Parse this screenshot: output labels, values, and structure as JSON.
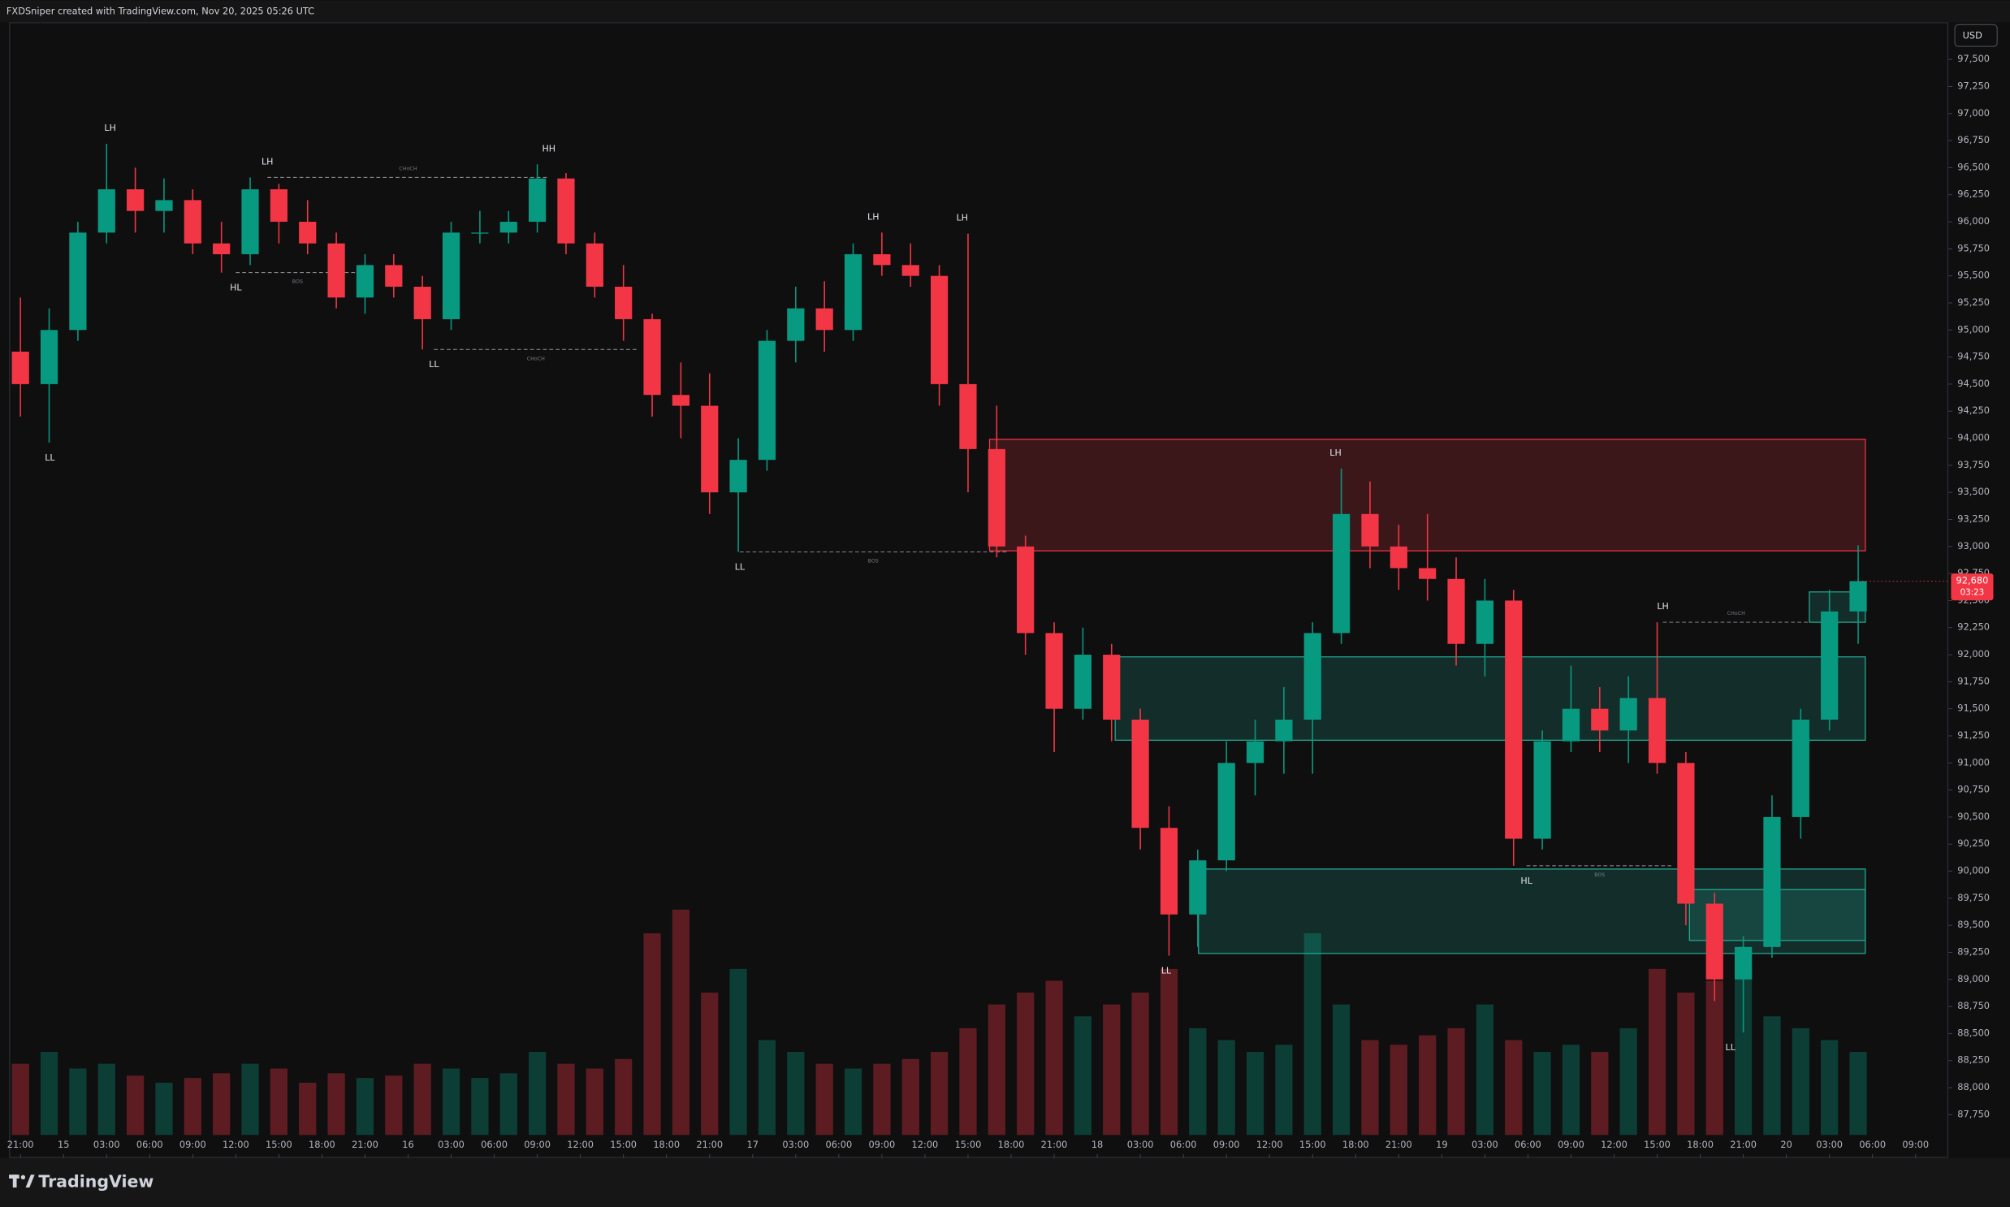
{
  "chart_data": {
    "type": "candlestick",
    "header": "FXDSniper created with TradingView.com, Nov 20, 2025 05:26 UTC",
    "currency": "USD",
    "brand": "TradingView",
    "up_color": "#089981",
    "down_color": "#f23645",
    "x": [
      0,
      2,
      4,
      6,
      8,
      10,
      12,
      14,
      16,
      18,
      20,
      22,
      24,
      26,
      28,
      30,
      32,
      34,
      36,
      38,
      40,
      42,
      44,
      46,
      48,
      50,
      52,
      54,
      56,
      58,
      60,
      62,
      64,
      66,
      68,
      70,
      72,
      74,
      76,
      78,
      80,
      82,
      84,
      86,
      88,
      90,
      92,
      94,
      96,
      98,
      100,
      102,
      104,
      106,
      108,
      110,
      112,
      114,
      116,
      118,
      120,
      122,
      124,
      126,
      128
    ],
    "open": [
      94800,
      94500,
      95000,
      95900,
      96300,
      96100,
      96200,
      95800,
      95700,
      96300,
      96000,
      95800,
      95300,
      95600,
      95400,
      95100,
      95900,
      95900,
      96000,
      96400,
      95800,
      95400,
      95100,
      94400,
      94300,
      93500,
      93800,
      94900,
      95200,
      95000,
      95700,
      95600,
      95500,
      94500,
      93900,
      93000,
      92200,
      91500,
      92000,
      91400,
      90400,
      89600,
      90100,
      91000,
      91200,
      91400,
      92200,
      93300,
      93000,
      92800,
      92700,
      92100,
      92500,
      90300,
      91200,
      91500,
      91300,
      91600,
      91000,
      89700,
      89000,
      89300,
      90500,
      91400,
      92400
    ],
    "high": [
      95300,
      95200,
      96000,
      96720,
      96500,
      96400,
      96300,
      96000,
      96410,
      96350,
      96200,
      95900,
      95700,
      95700,
      95500,
      96000,
      96100,
      96100,
      96530,
      96450,
      95900,
      95600,
      95150,
      94700,
      94600,
      94000,
      95000,
      95400,
      95450,
      95800,
      95900,
      95800,
      95600,
      95890,
      94300,
      93100,
      92300,
      92250,
      92100,
      91500,
      90600,
      90200,
      91200,
      91400,
      91700,
      92300,
      93720,
      93600,
      93200,
      93300,
      92900,
      92700,
      92600,
      91300,
      91900,
      91700,
      91800,
      92300,
      91100,
      89800,
      89400,
      90700,
      91500,
      92600,
      93010
    ],
    "low": [
      94200,
      93960,
      94900,
      95800,
      95900,
      95900,
      95700,
      95530,
      95600,
      95800,
      95700,
      95200,
      95150,
      95300,
      94820,
      95000,
      95800,
      95800,
      95900,
      95700,
      95300,
      94900,
      94200,
      94000,
      93300,
      92950,
      93700,
      94700,
      94800,
      94900,
      95500,
      95400,
      94300,
      93500,
      92900,
      92000,
      91100,
      91400,
      91200,
      90200,
      89220,
      89300,
      90000,
      90700,
      90900,
      90900,
      92100,
      92800,
      92600,
      92500,
      91900,
      91800,
      90050,
      90200,
      91100,
      91100,
      91000,
      90900,
      89500,
      88800,
      88510,
      89200,
      90300,
      91300,
      92100
    ],
    "close": [
      94500,
      95000,
      95900,
      96300,
      96100,
      96200,
      95800,
      95700,
      96300,
      96000,
      95800,
      95300,
      95600,
      95400,
      95100,
      95900,
      95900,
      96000,
      96400,
      95800,
      95400,
      95100,
      94400,
      94300,
      93500,
      93800,
      94900,
      95200,
      95000,
      95700,
      95600,
      95500,
      94500,
      93900,
      93000,
      92200,
      91500,
      92000,
      91400,
      90400,
      89600,
      90100,
      91000,
      91200,
      91400,
      92200,
      93300,
      93000,
      92800,
      92700,
      92100,
      92500,
      90300,
      91200,
      91500,
      91300,
      91600,
      91000,
      89700,
      89000,
      89300,
      90500,
      91400,
      92400,
      92680
    ],
    "volume": [
      30,
      35,
      28,
      30,
      25,
      22,
      24,
      26,
      30,
      28,
      22,
      26,
      24,
      25,
      30,
      28,
      24,
      26,
      35,
      30,
      28,
      32,
      85,
      95,
      60,
      70,
      40,
      35,
      30,
      28,
      30,
      32,
      35,
      45,
      55,
      60,
      65,
      50,
      55,
      60,
      70,
      45,
      40,
      35,
      38,
      85,
      55,
      40,
      38,
      42,
      45,
      55,
      40,
      35,
      38,
      35,
      45,
      70,
      60,
      65,
      70,
      50,
      45,
      40,
      35
    ],
    "vlim": [
      0,
      100
    ],
    "xlim": [
      -0.71,
      134.29
    ],
    "xticks": [
      {
        "value": 0,
        "label": "21:00"
      },
      {
        "value": 3,
        "label": "15"
      },
      {
        "value": 6,
        "label": "03:00"
      },
      {
        "value": 9,
        "label": "06:00"
      },
      {
        "value": 12,
        "label": "09:00"
      },
      {
        "value": 15,
        "label": "12:00"
      },
      {
        "value": 18,
        "label": "15:00"
      },
      {
        "value": 21,
        "label": "18:00"
      },
      {
        "value": 24,
        "label": "21:00"
      },
      {
        "value": 27,
        "label": "16"
      },
      {
        "value": 30,
        "label": "03:00"
      },
      {
        "value": 33,
        "label": "06:00"
      },
      {
        "value": 36,
        "label": "09:00"
      },
      {
        "value": 39,
        "label": "12:00"
      },
      {
        "value": 42,
        "label": "15:00"
      },
      {
        "value": 45,
        "label": "18:00"
      },
      {
        "value": 48,
        "label": "21:00"
      },
      {
        "value": 51,
        "label": "17"
      },
      {
        "value": 54,
        "label": "03:00"
      },
      {
        "value": 57,
        "label": "06:00"
      },
      {
        "value": 60,
        "label": "09:00"
      },
      {
        "value": 63,
        "label": "12:00"
      },
      {
        "value": 66,
        "label": "15:00"
      },
      {
        "value": 69,
        "label": "18:00"
      },
      {
        "value": 72,
        "label": "21:00"
      },
      {
        "value": 75,
        "label": "18"
      },
      {
        "value": 78,
        "label": "03:00"
      },
      {
        "value": 81,
        "label": "06:00"
      },
      {
        "value": 84,
        "label": "09:00"
      },
      {
        "value": 87,
        "label": "12:00"
      },
      {
        "value": 90,
        "label": "15:00"
      },
      {
        "value": 93,
        "label": "18:00"
      },
      {
        "value": 96,
        "label": "21:00"
      },
      {
        "value": 99,
        "label": "19"
      },
      {
        "value": 102,
        "label": "03:00"
      },
      {
        "value": 105,
        "label": "06:00"
      },
      {
        "value": 108,
        "label": "09:00"
      },
      {
        "value": 111,
        "label": "12:00"
      },
      {
        "value": 114,
        "label": "15:00"
      },
      {
        "value": 117,
        "label": "18:00"
      },
      {
        "value": 120,
        "label": "21:00"
      },
      {
        "value": 123,
        "label": "20"
      },
      {
        "value": 126,
        "label": "03:00"
      },
      {
        "value": 129,
        "label": "06:00"
      },
      {
        "value": 132,
        "label": "09:00"
      }
    ],
    "ylim": [
      87350,
      97845
    ],
    "yticks": [
      {
        "value": 97500,
        "label": "97,500"
      },
      {
        "value": 97250,
        "label": "97,250"
      },
      {
        "value": 97000,
        "label": "97,000"
      },
      {
        "value": 96750,
        "label": "96,750"
      },
      {
        "value": 96500,
        "label": "96,500"
      },
      {
        "value": 96250,
        "label": "96,250"
      },
      {
        "value": 96000,
        "label": "96,000"
      },
      {
        "value": 95750,
        "label": "95,750"
      },
      {
        "value": 95500,
        "label": "95,500"
      },
      {
        "value": 95250,
        "label": "95,250"
      },
      {
        "value": 95000,
        "label": "95,000"
      },
      {
        "value": 94750,
        "label": "94,750"
      },
      {
        "value": 94500,
        "label": "94,500"
      },
      {
        "value": 94250,
        "label": "94,250"
      },
      {
        "value": 94000,
        "label": "94,000"
      },
      {
        "value": 93750,
        "label": "93,750"
      },
      {
        "value": 93500,
        "label": "93,500"
      },
      {
        "value": 93250,
        "label": "93,250"
      },
      {
        "value": 93000,
        "label": "93,000"
      },
      {
        "value": 92750,
        "label": "92,750"
      },
      {
        "value": 92500,
        "label": "92,500"
      },
      {
        "value": 92250,
        "label": "92,250"
      },
      {
        "value": 92000,
        "label": "92,000"
      },
      {
        "value": 91750,
        "label": "91,750"
      },
      {
        "value": 91500,
        "label": "91,500"
      },
      {
        "value": 91250,
        "label": "91,250"
      },
      {
        "value": 91000,
        "label": "91,000"
      },
      {
        "value": 90750,
        "label": "90,750"
      },
      {
        "value": 90500,
        "label": "90,500"
      },
      {
        "value": 90250,
        "label": "90,250"
      },
      {
        "value": 90000,
        "label": "90,000"
      },
      {
        "value": 89750,
        "label": "89,750"
      },
      {
        "value": 89500,
        "label": "89,500"
      },
      {
        "value": 89250,
        "label": "89,250"
      },
      {
        "value": 89000,
        "label": "89,000"
      },
      {
        "value": 88750,
        "label": "88,750"
      },
      {
        "value": 88500,
        "label": "88,500"
      },
      {
        "value": 88250,
        "label": "88,250"
      },
      {
        "value": 88000,
        "label": "88,000"
      },
      {
        "value": 87750,
        "label": "87,750"
      }
    ],
    "zones": [
      {
        "x": [
          67.5,
          128.5
        ],
        "price": [
          93990,
          92960
        ],
        "color": "#f23645"
      },
      {
        "x": [
          76.25,
          128.5
        ],
        "price": [
          91980,
          91210
        ],
        "color": "#22ab94"
      },
      {
        "x": [
          82.05,
          128.5
        ],
        "price": [
          90020,
          89240
        ],
        "color": "#22ab94"
      },
      {
        "x": [
          116.25,
          128.5
        ],
        "price": [
          89830,
          89360
        ],
        "color": "#22ab94"
      },
      {
        "x": [
          124.6,
          128.5
        ],
        "price": [
          92580,
          92300
        ],
        "color": "#22ab94"
      }
    ],
    "structure": [
      {
        "label": "LL",
        "x": 2.05,
        "price": 93960,
        "position": "below"
      },
      {
        "label": "LH",
        "x": 6.25,
        "price": 96720,
        "position": "above"
      },
      {
        "label": "HL",
        "x": 15,
        "price": 95530,
        "position": "below"
      },
      {
        "label": "LH",
        "x": 17.2,
        "price": 96410,
        "position": "above"
      },
      {
        "label": "LL",
        "x": 28.8,
        "price": 94820,
        "position": "below"
      },
      {
        "label": "HH",
        "x": 36.8,
        "price": 96530,
        "position": "above"
      },
      {
        "label": "LL",
        "x": 50.1,
        "price": 92950,
        "position": "below"
      },
      {
        "label": "LH",
        "x": 59.4,
        "price": 95900,
        "position": "above"
      },
      {
        "label": "LH",
        "x": 65.6,
        "price": 95890,
        "position": "above"
      },
      {
        "label": "LL",
        "x": 79.8,
        "price": 89220,
        "position": "below"
      },
      {
        "label": "LH",
        "x": 91.6,
        "price": 93720,
        "position": "above"
      },
      {
        "label": "HL",
        "x": 104.9,
        "price": 90050,
        "position": "below"
      },
      {
        "label": "LH",
        "x": 114.4,
        "price": 92300,
        "position": "above"
      },
      {
        "label": "LL",
        "x": 119.1,
        "price": 88510,
        "position": "below"
      }
    ],
    "breaks": [
      {
        "label": "CHoCH",
        "x": [
          17.2,
          36.8
        ],
        "price": 96410,
        "position": "above"
      },
      {
        "label": "BOS",
        "x": [
          15,
          23.6
        ],
        "price": 95530,
        "position": "below"
      },
      {
        "label": "CHoCH",
        "x": [
          28.8,
          43
        ],
        "price": 94820,
        "position": "below"
      },
      {
        "label": "BOS",
        "x": [
          50.1,
          68.7
        ],
        "price": 92950,
        "position": "below"
      },
      {
        "label": "BOS",
        "x": [
          104.9,
          115.1
        ],
        "price": 90050,
        "position": "below"
      },
      {
        "label": "CHoCH",
        "x": [
          114.4,
          124.6
        ],
        "price": 92300,
        "position": "above"
      }
    ],
    "last_price": {
      "value": 92680,
      "label": "92,680",
      "countdown": "03:23"
    }
  }
}
